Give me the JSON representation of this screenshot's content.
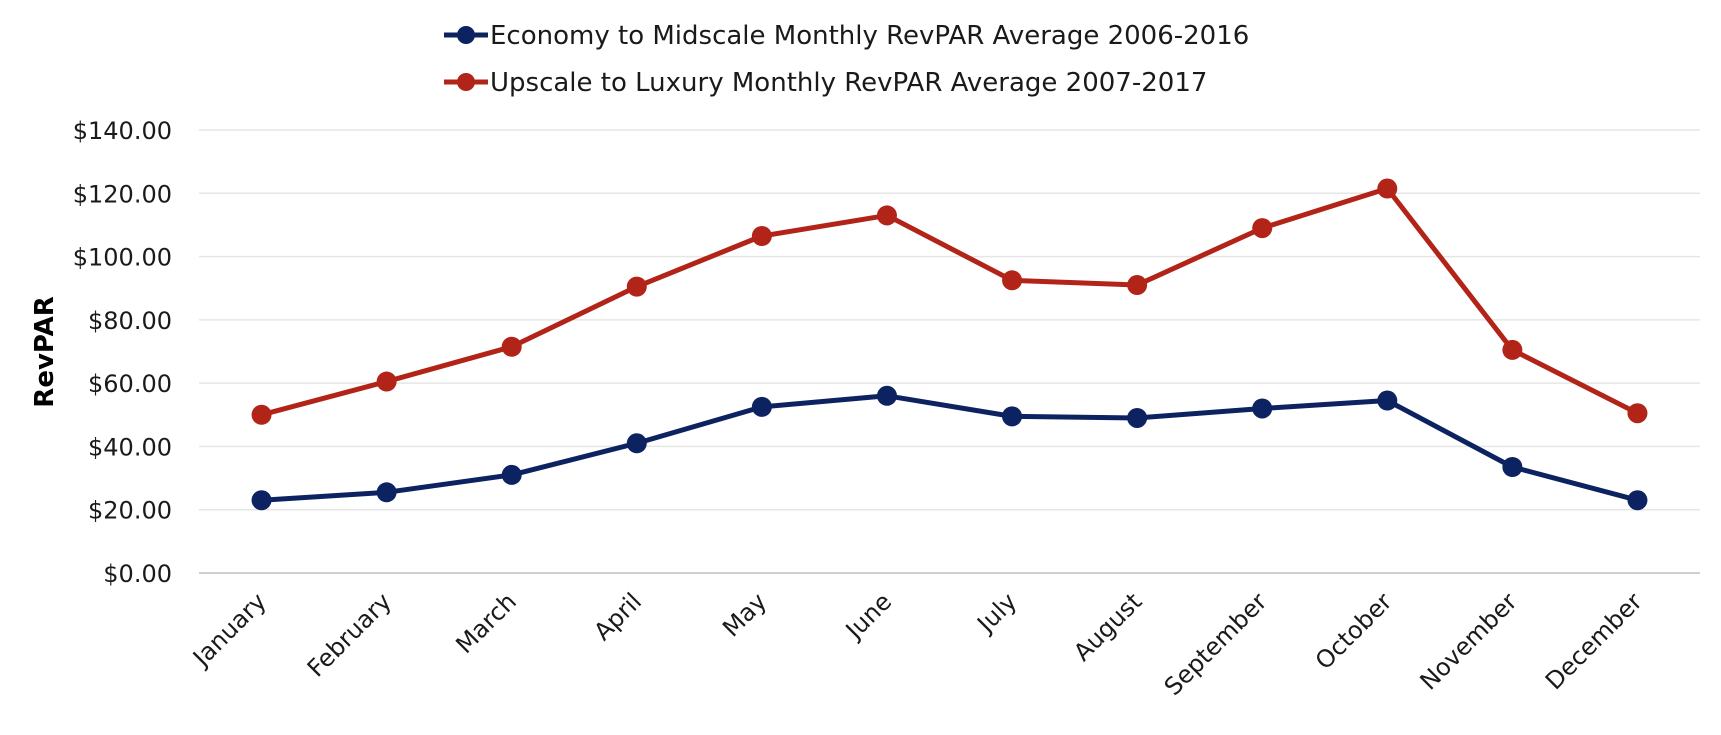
{
  "chart_data": {
    "type": "line",
    "title": "",
    "xlabel": "",
    "ylabel": "RevPAR",
    "ylim": [
      0,
      140
    ],
    "y_tick_step": 20,
    "y_tick_labels": [
      "$0.00",
      "$20.00",
      "$40.00",
      "$60.00",
      "$80.00",
      "$100.00",
      "$120.00",
      "$140.00"
    ],
    "grid": true,
    "legend_position": "top-center",
    "categories": [
      "January",
      "February",
      "March",
      "April",
      "May",
      "June",
      "July",
      "August",
      "September",
      "October",
      "November",
      "December"
    ],
    "series": [
      {
        "name": "Economy to Midscale Monthly RevPAR Average 2006-2016",
        "color": "#0d2361",
        "values": [
          23.0,
          25.5,
          31.0,
          41.0,
          52.5,
          56.0,
          49.5,
          49.0,
          52.0,
          54.5,
          33.5,
          23.0
        ]
      },
      {
        "name": "Upscale to Luxury Monthly RevPAR Average 2007-2017",
        "color": "#b22418",
        "values": [
          50.0,
          60.5,
          71.5,
          90.5,
          106.5,
          113.0,
          92.5,
          91.0,
          109.0,
          121.5,
          70.5,
          50.5
        ]
      }
    ]
  }
}
